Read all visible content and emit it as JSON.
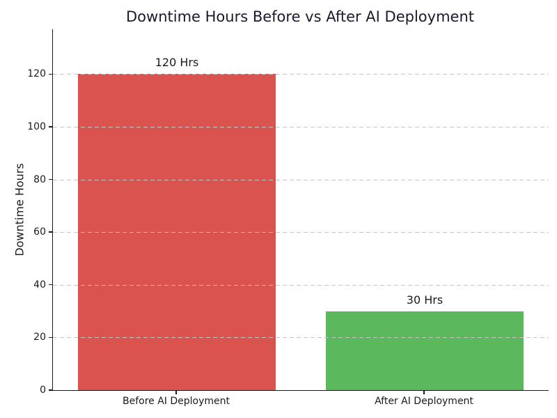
{
  "chart_data": {
    "type": "bar",
    "title": "Downtime Hours Before vs After AI Deployment",
    "xlabel": "",
    "ylabel": "Downtime Hours",
    "categories": [
      "Before AI Deployment",
      "After AI Deployment"
    ],
    "values": [
      120,
      30
    ],
    "bar_value_labels": [
      "120 Hrs",
      "30 Hrs"
    ],
    "bar_colors": [
      "#d9534f",
      "#5cb85c"
    ],
    "yticks": [
      0,
      20,
      40,
      60,
      80,
      100,
      120
    ],
    "ylim": [
      0,
      137
    ],
    "grid": "horizontal-dashed",
    "grid_color": "#c6c6c6",
    "legend": "none",
    "title_color": "#1a1a2e",
    "axis_color": "#1a1a1a",
    "background_color": "#ffffff"
  }
}
